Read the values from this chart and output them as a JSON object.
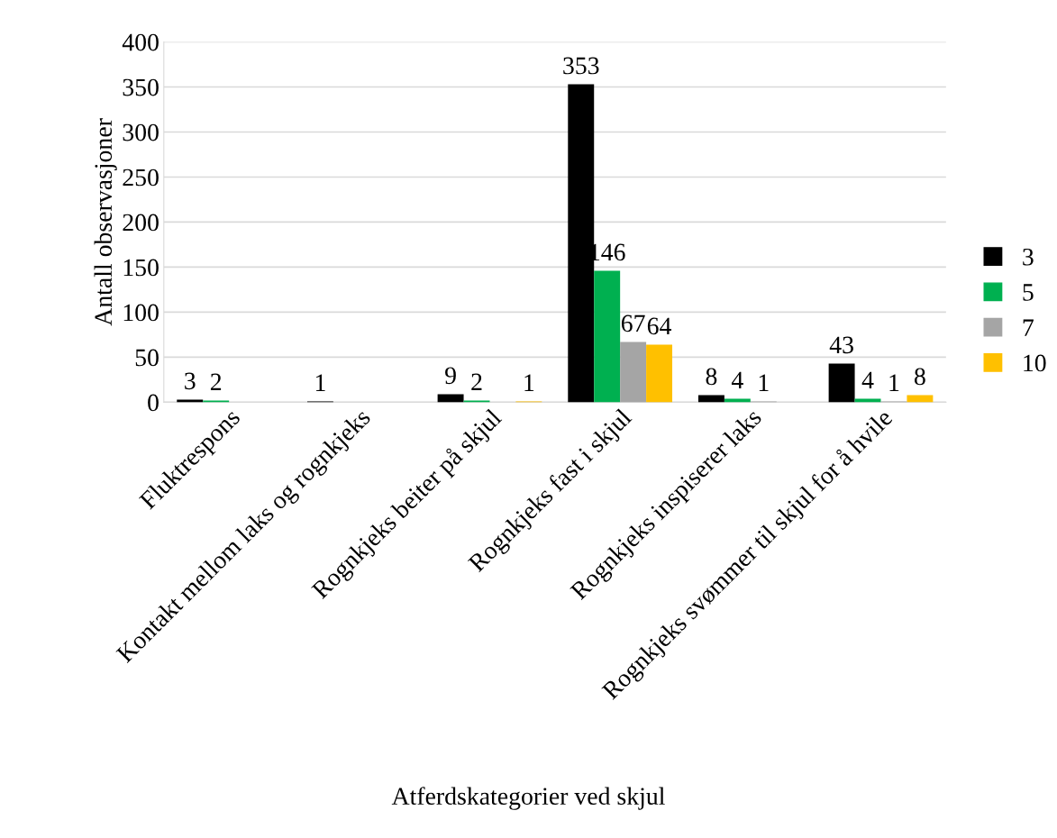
{
  "chart_data": {
    "type": "bar",
    "xlabel": "Atferdskategorier ved skjul",
    "ylabel": "Antall observasjoner",
    "categories": [
      "Fluktrespons",
      "Kontakt mellom laks og rognkjeks",
      "Rognkjeks beiter på skjul",
      "Rognkjeks fast i skjul",
      "Rognkjeks inspiserer laks",
      "Rognkjeks svømmer til skjul for å hvile"
    ],
    "series": [
      {
        "name": "3",
        "color": "#000000",
        "values": [
          3,
          1,
          9,
          353,
          8,
          43
        ]
      },
      {
        "name": "5",
        "color": "#00b050",
        "values": [
          2,
          null,
          2,
          146,
          4,
          4
        ]
      },
      {
        "name": "7",
        "color": "#a5a5a5",
        "values": [
          null,
          null,
          null,
          67,
          1,
          1
        ]
      },
      {
        "name": "10",
        "color": "#ffc000",
        "values": [
          null,
          null,
          1,
          64,
          null,
          8
        ]
      }
    ],
    "ylim": [
      0,
      400
    ],
    "yticks": [
      0,
      50,
      100,
      150,
      200,
      250,
      300,
      350,
      400
    ],
    "grid": "y",
    "legend": "right",
    "data_labels": true
  }
}
